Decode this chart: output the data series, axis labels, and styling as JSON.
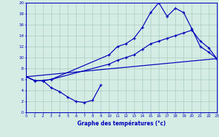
{
  "xlabel": "Graphe des températures (°c)",
  "bg_color": "#d4ece4",
  "grid_color": "#a8ccbc",
  "line_color": "#0000bb",
  "x_min": 0,
  "x_max": 23,
  "y_min": 0,
  "y_max": 20,
  "line1_x": [
    0,
    1,
    2,
    3,
    10,
    11,
    12,
    13,
    14,
    15,
    16,
    17,
    18,
    19,
    20,
    21,
    22,
    23
  ],
  "line1_y": [
    6.5,
    5.8,
    5.8,
    6.0,
    10.5,
    12.0,
    12.5,
    13.5,
    15.5,
    18.2,
    20.0,
    17.5,
    19.0,
    18.2,
    15.2,
    12.0,
    11.0,
    9.8
  ],
  "line2_x": [
    0,
    1,
    2,
    3,
    10,
    11,
    12,
    13,
    14,
    15,
    16,
    17,
    18,
    19,
    20,
    21,
    22,
    23
  ],
  "line2_y": [
    6.5,
    5.8,
    5.8,
    6.0,
    8.8,
    9.5,
    10.0,
    10.5,
    11.5,
    12.5,
    13.0,
    13.5,
    14.0,
    14.5,
    15.0,
    13.0,
    11.8,
    9.8
  ],
  "line3_x": [
    0,
    1,
    2,
    3,
    4,
    5,
    6,
    7,
    8,
    9
  ],
  "line3_y": [
    6.5,
    5.8,
    5.8,
    4.5,
    3.8,
    2.8,
    2.0,
    1.8,
    2.2,
    5.0
  ],
  "line4_x": [
    0,
    23
  ],
  "line4_y": [
    6.5,
    9.8
  ]
}
